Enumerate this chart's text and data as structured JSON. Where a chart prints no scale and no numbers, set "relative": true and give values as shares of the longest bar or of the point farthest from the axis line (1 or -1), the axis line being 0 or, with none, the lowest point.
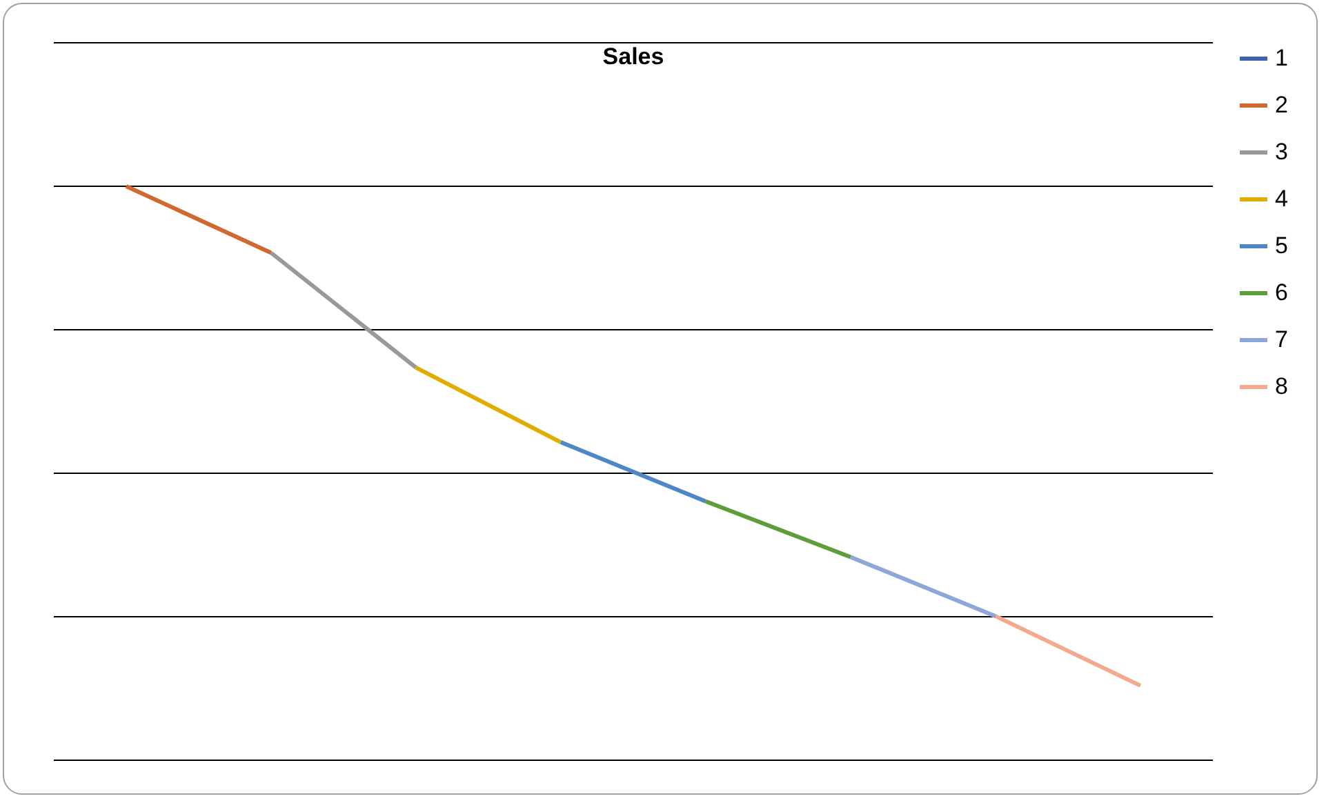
{
  "chart_data": {
    "type": "line",
    "title": "Sales",
    "relative": true,
    "categories": [
      null,
      null,
      null,
      null,
      null,
      null,
      null,
      null
    ],
    "series": [
      {
        "name": "1",
        "color": "#3b64ad",
        "values": [
          null,
          null,
          null,
          null,
          null,
          null,
          null,
          null
        ]
      },
      {
        "name": "2",
        "color": "#d0692e",
        "values": [
          1,
          0.884,
          null,
          null,
          null,
          null,
          null,
          null
        ]
      },
      {
        "name": "3",
        "color": "#999999",
        "values": [
          null,
          0.884,
          0.684,
          null,
          null,
          null,
          null,
          null
        ]
      },
      {
        "name": "4",
        "color": "#e0ac00",
        "values": [
          null,
          null,
          0.684,
          0.554,
          null,
          null,
          null,
          null
        ]
      },
      {
        "name": "5",
        "color": "#4f86c6",
        "values": [
          null,
          null,
          null,
          0.554,
          0.451,
          null,
          null,
          null
        ]
      },
      {
        "name": "6",
        "color": "#5e9e3a",
        "values": [
          null,
          null,
          null,
          null,
          0.451,
          0.354,
          null,
          null
        ]
      },
      {
        "name": "7",
        "color": "#8fa6d8",
        "values": [
          null,
          null,
          null,
          null,
          null,
          0.354,
          0.251,
          null
        ]
      },
      {
        "name": "8",
        "color": "#f2a98c",
        "values": [
          null,
          null,
          null,
          null,
          null,
          null,
          0.251,
          0.13
        ]
      }
    ],
    "grid": true,
    "legend": "right",
    "marker": "none",
    "line_style": "solid"
  }
}
